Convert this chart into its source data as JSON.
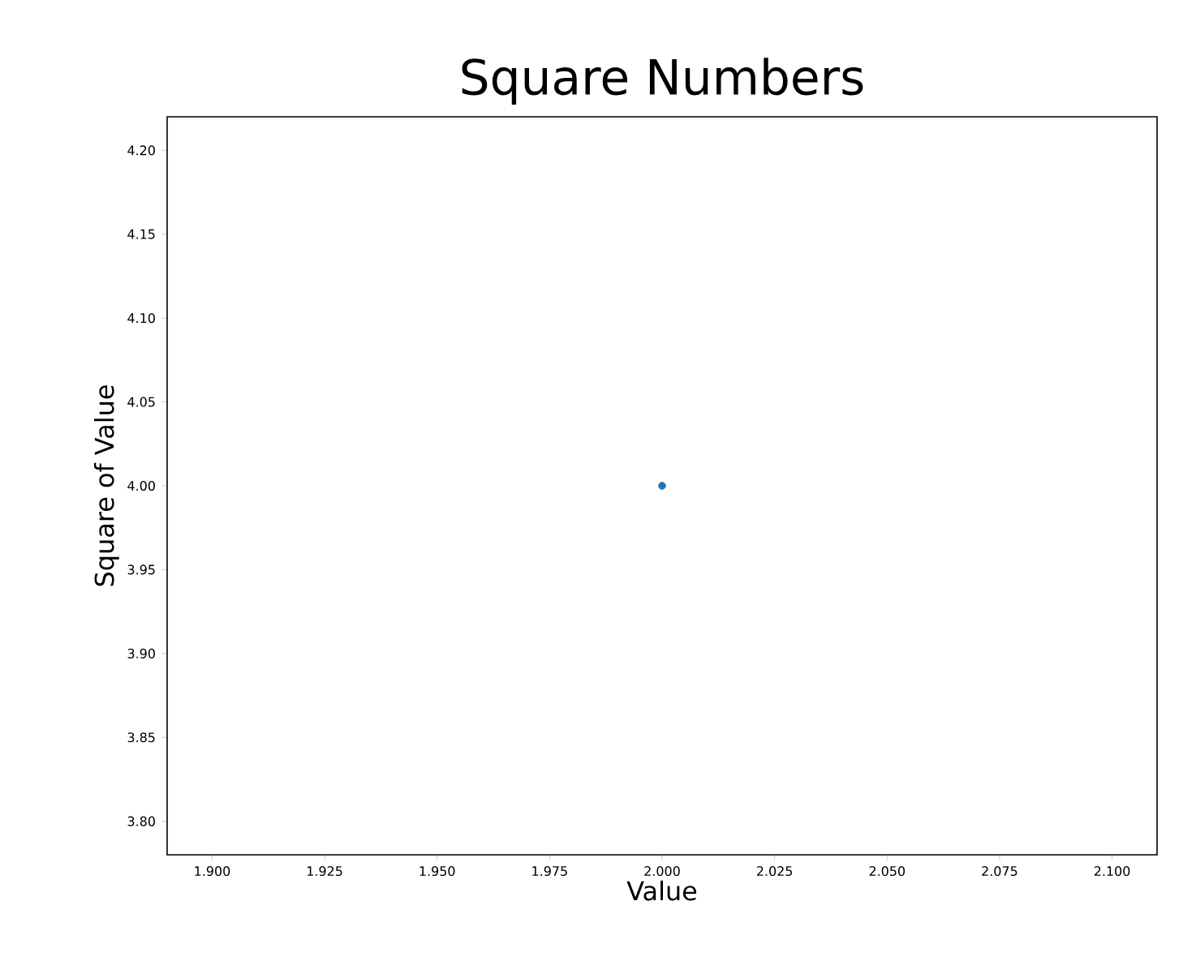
{
  "chart_data": {
    "type": "scatter",
    "title": "Square Numbers",
    "xlabel": "Value",
    "ylabel": "Square of Value",
    "x": [
      2
    ],
    "series": [
      {
        "color": "#1f77b4",
        "values": [
          4
        ]
      }
    ],
    "marker": "circle",
    "xlim": [
      1.89,
      2.11
    ],
    "ylim": [
      3.78,
      4.22
    ],
    "xticks": [
      {
        "value": 1.9,
        "label": "1.900"
      },
      {
        "value": 1.925,
        "label": "1.925"
      },
      {
        "value": 1.95,
        "label": "1.950"
      },
      {
        "value": 1.975,
        "label": "1.975"
      },
      {
        "value": 2.0,
        "label": "2.000"
      },
      {
        "value": 2.025,
        "label": "2.025"
      },
      {
        "value": 2.05,
        "label": "2.050"
      },
      {
        "value": 2.075,
        "label": "2.075"
      },
      {
        "value": 2.1,
        "label": "2.100"
      }
    ],
    "yticks": [
      {
        "value": 3.8,
        "label": "3.80"
      },
      {
        "value": 3.85,
        "label": "3.85"
      },
      {
        "value": 3.9,
        "label": "3.90"
      },
      {
        "value": 3.95,
        "label": "3.95"
      },
      {
        "value": 4.0,
        "label": "4.00"
      },
      {
        "value": 4.05,
        "label": "4.05"
      },
      {
        "value": 4.1,
        "label": "4.10"
      },
      {
        "value": 4.15,
        "label": "4.15"
      },
      {
        "value": 4.2,
        "label": "4.20"
      }
    ],
    "grid": false
  }
}
